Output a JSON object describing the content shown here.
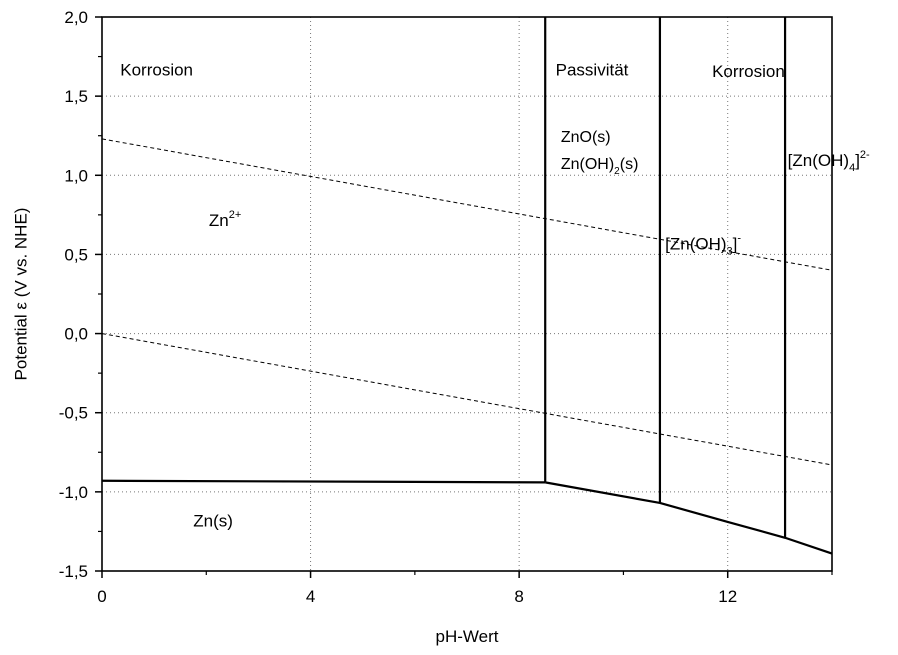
{
  "chart_data": {
    "type": "line",
    "title": "",
    "xlabel": "pH-Wert",
    "ylabel": "Potential ε (V vs. NHE)",
    "xlim": [
      0,
      14
    ],
    "ylim": [
      -1.5,
      2.0
    ],
    "x_ticks": [
      0,
      4,
      8,
      12
    ],
    "x_tick_labels": [
      "0",
      "4",
      "8",
      "12"
    ],
    "y_ticks": [
      -1.5,
      -1.0,
      -0.5,
      0.0,
      0.5,
      1.0,
      1.5,
      2.0
    ],
    "y_tick_labels": [
      "-1,5",
      "-1,0",
      "-0,5",
      "0,0",
      "0,5",
      "1,0",
      "1,5",
      "2,0"
    ],
    "grid": true,
    "grid_style": "dotted",
    "water_lines": [
      {
        "style": "dashed",
        "x": [
          0,
          14
        ],
        "y": [
          1.23,
          0.4
        ]
      },
      {
        "style": "dashed",
        "x": [
          0,
          14
        ],
        "y": [
          0.0,
          -0.83
        ]
      }
    ],
    "boundaries": [
      {
        "style": "solid",
        "x": [
          0,
          8.5
        ],
        "y": [
          -0.93,
          -0.94
        ]
      },
      {
        "style": "solid",
        "x": [
          8.5,
          10.7,
          12.0,
          13.1,
          14.0
        ],
        "y": [
          -0.94,
          -1.07,
          -1.19,
          -1.29,
          -1.39
        ]
      },
      {
        "style": "solid",
        "x": [
          8.5,
          8.5
        ],
        "y": [
          -0.94,
          2.0
        ]
      },
      {
        "style": "solid",
        "x": [
          10.7,
          10.7
        ],
        "y": [
          -1.07,
          2.0
        ]
      },
      {
        "style": "solid",
        "x": [
          13.1,
          13.1
        ],
        "y": [
          -1.29,
          2.0
        ]
      }
    ],
    "region_labels": [
      {
        "id": "korrosion-left",
        "parts": [
          [
            "Korrosion",
            "n"
          ]
        ],
        "x": 0.35,
        "y": 1.63,
        "size": 17
      },
      {
        "id": "passivitaet",
        "parts": [
          [
            "Passivität",
            "n"
          ]
        ],
        "x": 8.7,
        "y": 1.63,
        "size": 17
      },
      {
        "id": "korrosion-right",
        "parts": [
          [
            "Korrosion",
            "n"
          ]
        ],
        "x": 11.7,
        "y": 1.62,
        "size": 17
      },
      {
        "id": "zno",
        "parts": [
          [
            "ZnO(s)",
            "n"
          ]
        ],
        "x": 8.8,
        "y": 1.21,
        "size": 16
      },
      {
        "id": "znoh2",
        "parts": [
          [
            "Zn(OH)",
            "n"
          ],
          [
            "2",
            "sub"
          ],
          [
            "(s)",
            "n"
          ]
        ],
        "x": 8.8,
        "y": 1.04,
        "size": 16
      },
      {
        "id": "znoh4",
        "parts": [
          [
            "[Zn(OH)",
            "n"
          ],
          [
            "4",
            "sub"
          ],
          [
            "]",
            "n"
          ],
          [
            "2-",
            "sup"
          ]
        ],
        "x": 13.15,
        "y": 1.06,
        "size": 17
      },
      {
        "id": "zn2plus",
        "parts": [
          [
            "Zn",
            "n"
          ],
          [
            "2+",
            "sup"
          ]
        ],
        "x": 2.05,
        "y": 0.68,
        "size": 17
      },
      {
        "id": "znoh3",
        "parts": [
          [
            "[Zn(OH)",
            "n"
          ],
          [
            "3",
            "sub"
          ],
          [
            "]",
            "n"
          ],
          [
            "-",
            "sup"
          ]
        ],
        "x": 10.8,
        "y": 0.53,
        "size": 17
      },
      {
        "id": "zns",
        "parts": [
          [
            "Zn(s)",
            "n"
          ]
        ],
        "x": 1.75,
        "y": -1.22,
        "size": 17
      }
    ]
  }
}
